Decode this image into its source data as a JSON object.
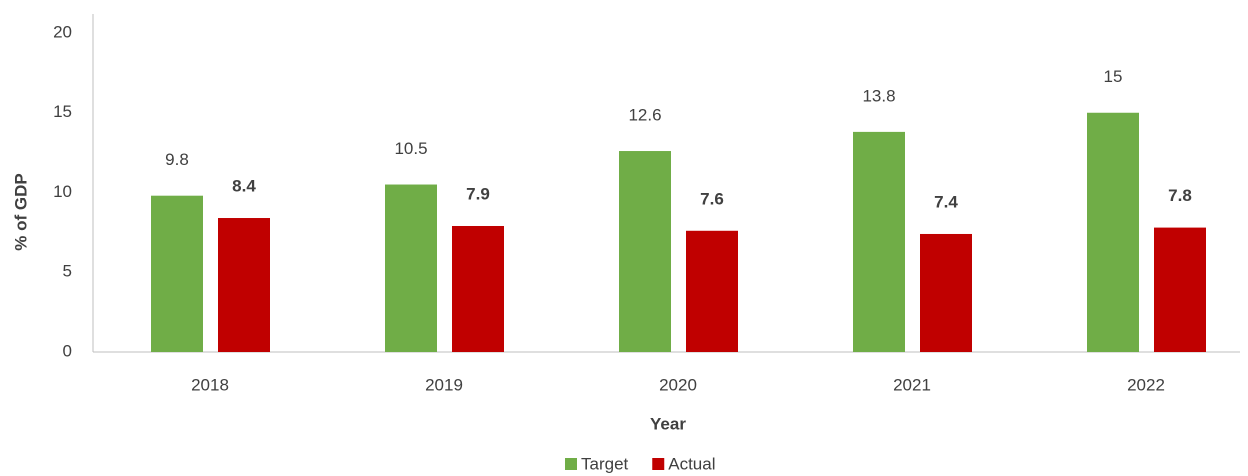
{
  "chart_data": {
    "type": "bar",
    "x_label": "Year",
    "y_label": "% of GDP",
    "categories": [
      "2018",
      "2019",
      "2020",
      "2021",
      "2022"
    ],
    "series": [
      {
        "name": "Target",
        "color": "#70ad47",
        "values": [
          9.8,
          10.5,
          12.6,
          13.8,
          15
        ],
        "label_bold": false
      },
      {
        "name": "Actual",
        "color": "#c00000",
        "values": [
          8.4,
          7.9,
          7.6,
          7.4,
          7.8
        ],
        "label_bold": true
      }
    ],
    "ylim": [
      0,
      20
    ],
    "yticks": [
      0,
      5,
      10,
      15,
      20
    ],
    "grid": false,
    "legend": "bottom"
  }
}
